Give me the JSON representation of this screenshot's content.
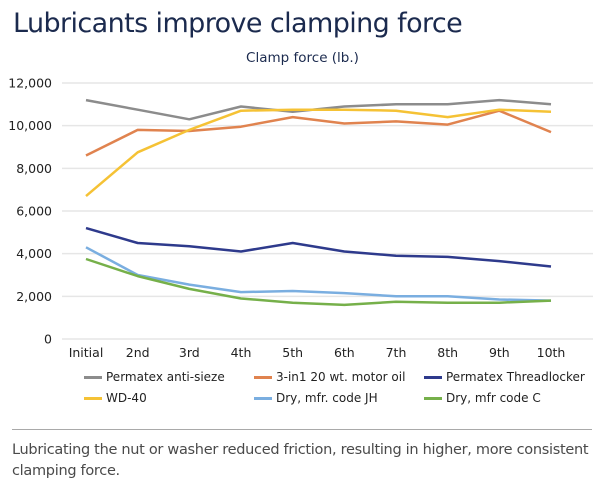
{
  "header": {
    "title": "Lubricants improve clamping force"
  },
  "caption": "Lubricating the nut or washer reduced friction, resulting in higher, more consistent clamping force.",
  "chart_data": {
    "type": "line",
    "title": "Clamp force (lb.)",
    "xlabel": "",
    "ylabel": "",
    "categories": [
      "Initial",
      "2nd",
      "3rd",
      "4th",
      "5th",
      "6th",
      "7th",
      "8th",
      "9th",
      "10th"
    ],
    "ylim": [
      0,
      12000
    ],
    "yticks": [
      0,
      2000,
      4000,
      6000,
      8000,
      10000,
      12000
    ],
    "ytick_labels": [
      "0",
      "2,000",
      "4,000",
      "6,000",
      "8,000",
      "10,000",
      "12,000"
    ],
    "grid": true,
    "legend_position": "bottom",
    "series": [
      {
        "name": "Permatex anti-sieze",
        "color": "#8c8c8c",
        "values": [
          11200,
          10750,
          10300,
          10900,
          10650,
          10900,
          11000,
          11000,
          11200,
          11000
        ]
      },
      {
        "name": "3-in1 20 wt. motor oil",
        "color": "#e0834f",
        "values": [
          8600,
          9800,
          9750,
          9950,
          10400,
          10100,
          10200,
          10050,
          10700,
          9700
        ]
      },
      {
        "name": "Permatex Threadlocker",
        "color": "#2e3a8c",
        "values": [
          5200,
          4500,
          4350,
          4100,
          4500,
          4100,
          3900,
          3850,
          3650,
          3400
        ]
      },
      {
        "name": "WD-40",
        "color": "#f5c235",
        "values": [
          6700,
          8750,
          9800,
          10700,
          10750,
          10750,
          10700,
          10400,
          10750,
          10650
        ]
      },
      {
        "name": "Dry, mfr. code JH",
        "color": "#7aaee0",
        "values": [
          4300,
          3000,
          2550,
          2200,
          2250,
          2150,
          2000,
          2000,
          1850,
          1800
        ]
      },
      {
        "name": "Dry, mfr code C",
        "color": "#76b04a",
        "values": [
          3750,
          2950,
          2350,
          1900,
          1700,
          1600,
          1750,
          1700,
          1700,
          1800
        ]
      }
    ]
  }
}
